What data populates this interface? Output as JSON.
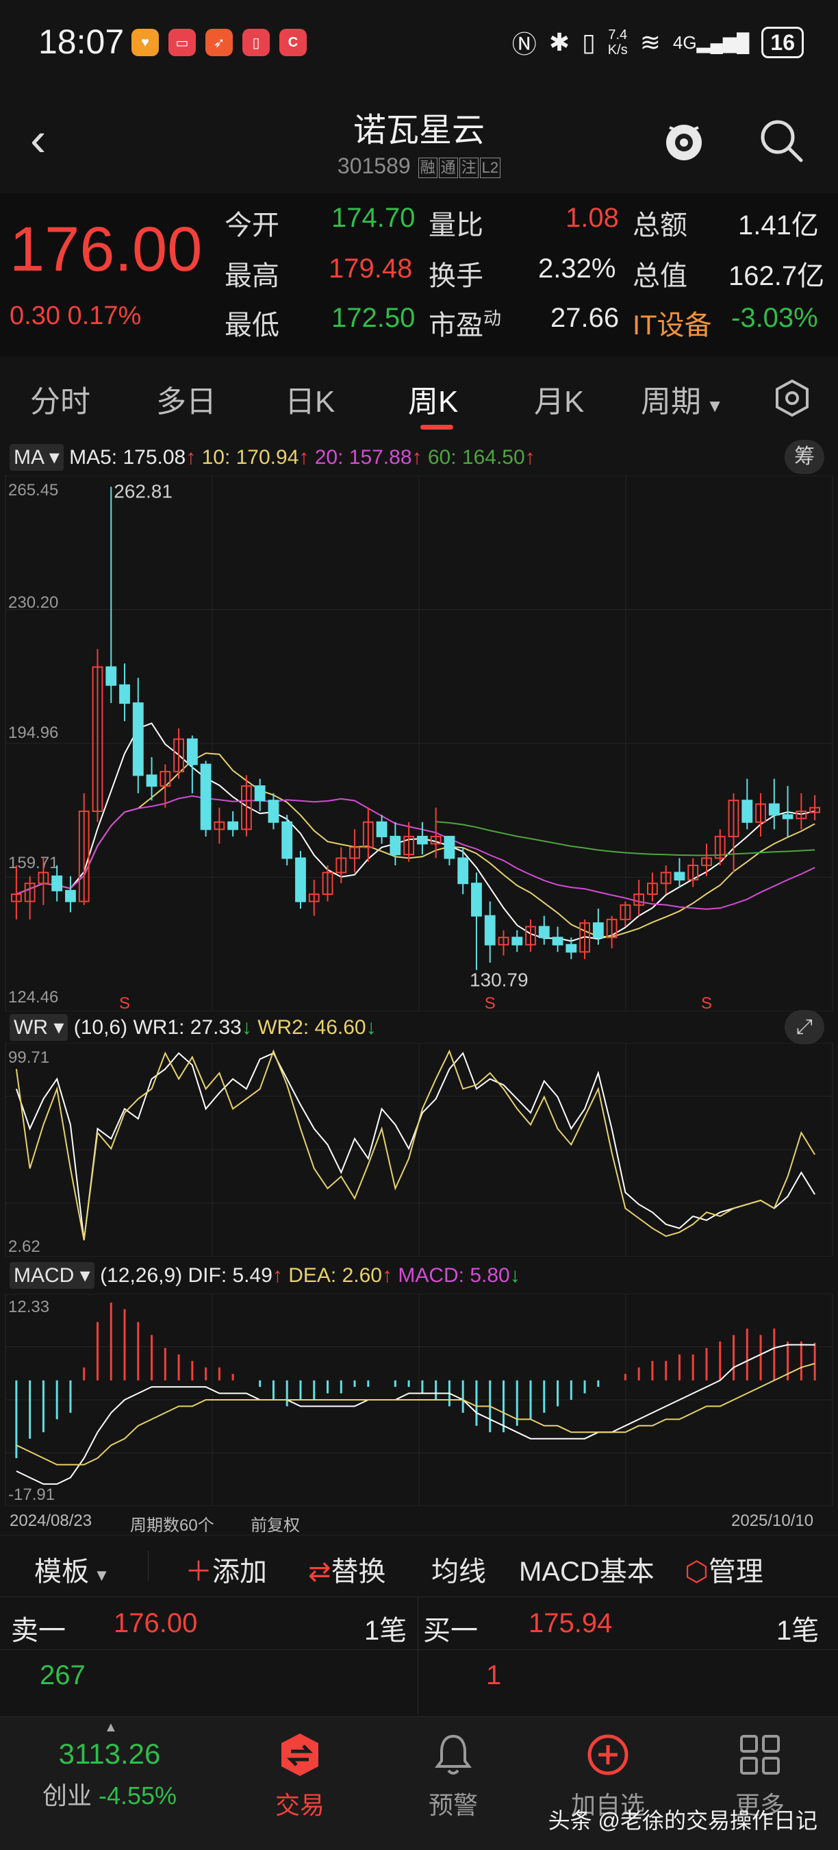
{
  "status_bar": {
    "time": "18:07",
    "net_speed": "7.4\nK/s",
    "battery": "16",
    "signal": "4G"
  },
  "header": {
    "stock_name": "诺瓦星云",
    "stock_code": "301589",
    "tags": [
      "融",
      "通",
      "注",
      "L2"
    ]
  },
  "quote": {
    "price": "176.00",
    "change": "0.30",
    "change_pct": "0.17%",
    "fields": [
      {
        "label": "今开",
        "value": "174.70",
        "color": "green"
      },
      {
        "label": "量比",
        "value": "1.08",
        "color": "red"
      },
      {
        "label": "总额",
        "value": "1.41亿",
        "color": "white"
      },
      {
        "label": "最高",
        "value": "179.48",
        "color": "red"
      },
      {
        "label": "换手",
        "value": "2.32%",
        "color": "white"
      },
      {
        "label": "总值",
        "value": "162.7亿",
        "color": "white"
      },
      {
        "label": "最低",
        "value": "172.50",
        "color": "green"
      },
      {
        "label": "市盈",
        "value": "27.66",
        "color": "white"
      },
      {
        "label": "IT设备",
        "value": "-3.03%",
        "color": "green"
      }
    ],
    "pe_superscript": "动"
  },
  "tabs": [
    "分时",
    "多日",
    "日K",
    "周K",
    "月K",
    "周期"
  ],
  "active_tab": "周K",
  "ma_line": {
    "selector": "MA",
    "ma5": "MA5: 175.08",
    "ma10": "10: 170.94",
    "ma20": "20: 157.88",
    "ma60": "60: 164.50",
    "arrow": "↑",
    "chou": "筹"
  },
  "wr_line": {
    "selector": "WR",
    "params": "(10,6) WR1: 27.33",
    "wr2": "WR2: 46.60",
    "down": "↓"
  },
  "macd_line": {
    "selector": "MACD",
    "params": "(12,26,9) DIF: 5.49",
    "dea": "DEA: 2.60",
    "macd": "MACD: 5.80",
    "up": "↑",
    "down": "↓"
  },
  "axes": {
    "k_ticks": [
      "265.45",
      "230.20",
      "194.96",
      "159.71",
      "124.46"
    ],
    "k_high_label": "262.81",
    "k_low_label": "130.79",
    "wr_ticks": [
      "99.71",
      "2.62"
    ],
    "macd_ticks": [
      "12.33",
      "-17.91"
    ],
    "start_date": "2024/08/23",
    "period_count": "周期数60个",
    "adjust": "前复权",
    "end_date": "2025/10/10",
    "signal_mark": "S"
  },
  "tools": {
    "template": "模板",
    "add": "添加",
    "replace": "替换",
    "ma": "均线",
    "macd_basic": "MACD基本",
    "manage": "管理"
  },
  "book": {
    "sell_label": "卖一",
    "sell_price": "176.00",
    "sell_orders": "1笔",
    "sell_volume": "267",
    "buy_label": "买一",
    "buy_price": "175.94",
    "buy_orders": "1笔",
    "buy_volume": "1"
  },
  "bottom_nav": {
    "index_value": "3113.26",
    "index_name": "创业",
    "index_change": "-4.55%",
    "items": [
      "交易",
      "预警",
      "加自选",
      "更多"
    ]
  },
  "watermark": "头条 @老徐的交易操作日记",
  "colors": {
    "up": "#f2413a",
    "down": "#5fe0e6",
    "ma5": "#ffffff",
    "ma10": "#e8d36a",
    "ma20": "#d44cd4",
    "ma60": "#4ea63f",
    "accent": "#f2413a"
  },
  "chart_data": [
    {
      "type": "candlestick",
      "title": "周K",
      "ylim": [
        124.46,
        265.45
      ],
      "x_range": [
        "2024/08/23",
        "2025/10/10"
      ],
      "count": 60,
      "ohlc": [
        [
          150,
          160,
          145,
          152
        ],
        [
          150,
          157,
          145,
          155
        ],
        [
          155,
          162,
          149,
          158
        ],
        [
          157,
          160,
          150,
          153
        ],
        [
          153,
          157,
          147,
          150
        ],
        [
          150,
          180,
          149,
          175
        ],
        [
          175,
          220,
          172,
          215
        ],
        [
          215,
          265,
          205,
          210
        ],
        [
          210,
          216,
          200,
          205
        ],
        [
          205,
          212,
          180,
          185
        ],
        [
          185,
          190,
          178,
          182
        ],
        [
          182,
          188,
          176,
          186
        ],
        [
          186,
          198,
          184,
          195
        ],
        [
          195,
          196,
          180,
          188
        ],
        [
          188,
          189,
          168,
          170
        ],
        [
          170,
          176,
          166,
          172
        ],
        [
          172,
          175,
          168,
          170
        ],
        [
          170,
          185,
          168,
          182
        ],
        [
          182,
          184,
          175,
          178
        ],
        [
          178,
          180,
          170,
          172
        ],
        [
          172,
          174,
          160,
          162
        ],
        [
          162,
          164,
          148,
          150
        ],
        [
          150,
          156,
          146,
          152
        ],
        [
          152,
          160,
          150,
          158
        ],
        [
          158,
          165,
          155,
          162
        ],
        [
          162,
          170,
          158,
          165
        ],
        [
          165,
          176,
          161,
          172
        ],
        [
          172,
          174,
          166,
          168
        ],
        [
          168,
          172,
          160,
          163
        ],
        [
          163,
          172,
          161,
          168
        ],
        [
          168,
          172,
          163,
          166
        ],
        [
          166,
          176,
          162,
          168
        ],
        [
          168,
          168,
          160,
          162
        ],
        [
          162,
          165,
          152,
          155
        ],
        [
          155,
          158,
          131,
          146
        ],
        [
          146,
          150,
          133,
          138
        ],
        [
          138,
          142,
          135,
          140
        ],
        [
          140,
          142,
          136,
          138
        ],
        [
          138,
          145,
          136,
          143
        ],
        [
          143,
          146,
          138,
          140
        ],
        [
          140,
          143,
          136,
          138
        ],
        [
          138,
          140,
          134,
          136
        ],
        [
          136,
          145,
          134,
          144
        ],
        [
          144,
          148,
          138,
          140
        ],
        [
          140,
          146,
          137,
          145
        ],
        [
          145,
          150,
          143,
          149
        ],
        [
          149,
          156,
          146,
          152
        ],
        [
          152,
          158,
          150,
          155
        ],
        [
          155,
          160,
          152,
          158
        ],
        [
          158,
          162,
          154,
          156
        ],
        [
          156,
          162,
          154,
          160
        ],
        [
          160,
          166,
          157,
          162
        ],
        [
          162,
          170,
          160,
          168
        ],
        [
          168,
          180,
          158,
          178
        ],
        [
          178,
          184,
          170,
          172
        ],
        [
          172,
          180,
          168,
          177
        ],
        [
          177,
          184,
          170,
          174
        ],
        [
          174,
          182,
          168,
          173
        ],
        [
          173,
          180,
          170,
          175
        ],
        [
          174.7,
          179.48,
          172.5,
          176
        ]
      ],
      "ma": {
        "MA5": 175.08,
        "MA10": 170.94,
        "MA20": 157.88,
        "MA60": 164.5
      }
    },
    {
      "type": "line",
      "title": "WR",
      "ylim": [
        2.62,
        99.71
      ],
      "series": [
        {
          "name": "WR1",
          "values": [
            80,
            60,
            75,
            85,
            62,
            4,
            60,
            55,
            70,
            65,
            85,
            90,
            98,
            92,
            70,
            78,
            85,
            80,
            95,
            98,
            85,
            72,
            60,
            52,
            38,
            55,
            45,
            70,
            62,
            50,
            68,
            75,
            90,
            98,
            80,
            85,
            82,
            75,
            68,
            84,
            76,
            60,
            70,
            88,
            60,
            28,
            22,
            18,
            12,
            10,
            16,
            14,
            18,
            20,
            22,
            24,
            20,
            26,
            38,
            27
          ]
        },
        {
          "name": "WR2",
          "values": [
            90,
            40,
            62,
            80,
            40,
            4,
            58,
            50,
            68,
            75,
            80,
            98,
            85,
            96,
            80,
            88,
            70,
            75,
            80,
            99,
            82,
            60,
            40,
            30,
            36,
            25,
            42,
            60,
            30,
            45,
            70,
            85,
            99,
            80,
            82,
            88,
            80,
            70,
            62,
            76,
            60,
            52,
            66,
            80,
            48,
            20,
            15,
            10,
            6,
            8,
            12,
            18,
            16,
            20,
            22,
            24,
            20,
            36,
            58,
            47
          ]
        }
      ]
    },
    {
      "type": "bar",
      "title": "MACD",
      "ylim": [
        -17.91,
        12.33
      ],
      "series": [
        {
          "name": "MACD",
          "values": [
            -12,
            -9,
            -8,
            -6,
            -5,
            2,
            9,
            12,
            11,
            9,
            7,
            5,
            4,
            3,
            2,
            2,
            1,
            0,
            -1,
            -3,
            -4,
            -3,
            -3,
            -2,
            -2,
            -1,
            -1,
            0,
            -1,
            -1,
            -2,
            -3,
            -4,
            -5,
            -7,
            -8,
            -8,
            -7,
            -6,
            -5,
            -4,
            -3,
            -2,
            -1,
            0,
            1,
            2,
            3,
            3,
            4,
            4,
            5,
            6,
            7,
            8,
            7,
            8,
            6,
            6,
            5.8
          ]
        },
        {
          "name": "DIF",
          "values": [
            -14,
            -15,
            -16,
            -16,
            -15,
            -12,
            -8,
            -5,
            -3,
            -2,
            -1,
            -1,
            -1,
            -1,
            -1,
            -2,
            -2,
            -2,
            -3,
            -3,
            -3,
            -4,
            -4,
            -4,
            -4,
            -4,
            -3,
            -3,
            -3,
            -2,
            -2,
            -2,
            -2,
            -3,
            -5,
            -6,
            -7,
            -8,
            -9,
            -9,
            -9,
            -9,
            -9,
            -8,
            -8,
            -7,
            -6,
            -5,
            -4,
            -3,
            -2,
            -1,
            0,
            2,
            3,
            4,
            5,
            5.5,
            5.5,
            5.49
          ]
        },
        {
          "name": "DEA",
          "values": [
            -10,
            -11,
            -12,
            -13,
            -13,
            -13,
            -12,
            -10,
            -9,
            -7,
            -6,
            -5,
            -4,
            -4,
            -3,
            -3,
            -3,
            -3,
            -3,
            -3,
            -3,
            -3,
            -3,
            -3,
            -3,
            -3,
            -3,
            -3,
            -3,
            -3,
            -3,
            -3,
            -3,
            -3,
            -4,
            -4,
            -5,
            -6,
            -6,
            -7,
            -7,
            -8,
            -8,
            -8,
            -8,
            -8,
            -7,
            -7,
            -6,
            -6,
            -5,
            -4,
            -4,
            -3,
            -2,
            -1,
            0,
            1,
            2,
            2.6
          ]
        }
      ]
    }
  ]
}
